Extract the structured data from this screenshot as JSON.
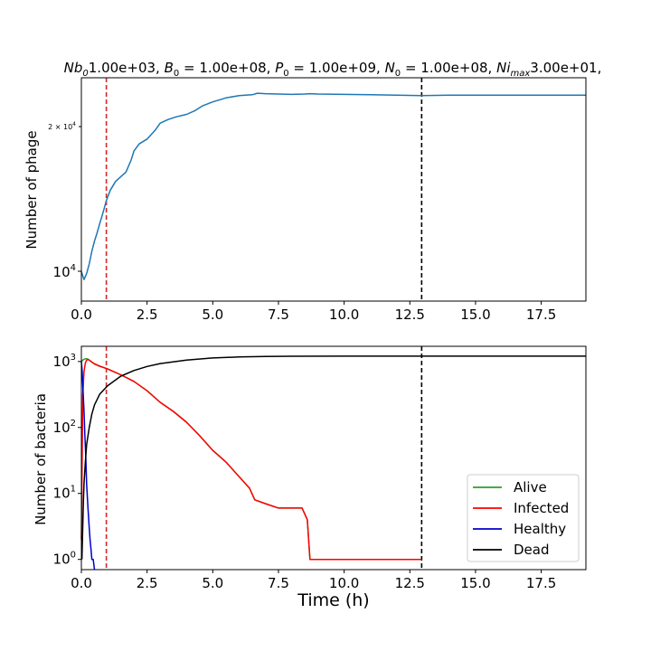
{
  "chart_data": [
    {
      "type": "line",
      "title": "Nb₀1.00e+03, B₀ = 1.00e+08, P₀ = 1.00e+09, N₀ = 1.00e+08, Ni_max3.00e+01,",
      "title_parts": {
        "p1": "Nb",
        "s1": "0",
        "v1": "1.00e+03, ",
        "p2": "B",
        "s2": "0",
        "v2": " = 1.00e+08, ",
        "p3": "P",
        "s3": "0",
        "v3": " = 1.00e+09, ",
        "p4": "N",
        "s4": "0",
        "v4": " = 1.00e+08, ",
        "p5": "Ni",
        "s5": "max",
        "v5": "3.00e+01,"
      },
      "xlabel": "",
      "ylabel": "Number of phage",
      "yscale": "log",
      "xlim": [
        0,
        19.2
      ],
      "ylim": [
        8400,
        27000
      ],
      "x_ticks": [
        "0.0",
        "2.5",
        "5.0",
        "7.5",
        "10.0",
        "12.5",
        "15.0",
        "17.5"
      ],
      "y_tick_labels": {
        "major": "10",
        "major_exp": "4",
        "minor": "2 × 10",
        "minor_exp": "4"
      },
      "vlines": [
        {
          "x": 0.95,
          "color": "#d62728",
          "style": "dashed"
        },
        {
          "x": 12.95,
          "color": "#000000",
          "style": "dashed"
        }
      ],
      "series": [
        {
          "color": "#1f77b4",
          "x": [
            0.0,
            0.1,
            0.2,
            0.3,
            0.4,
            0.5,
            0.6,
            0.7,
            0.8,
            0.95,
            1.1,
            1.3,
            1.5,
            1.7,
            1.9,
            2.0,
            2.2,
            2.5,
            2.8,
            3.0,
            3.3,
            3.6,
            4.0,
            4.3,
            4.6,
            5.0,
            5.5,
            6.0,
            6.5,
            6.7,
            7.0,
            7.5,
            8.0,
            8.5,
            8.7,
            9.0,
            10.0,
            11.0,
            12.0,
            12.95,
            14.0,
            15.0,
            16.0,
            17.0,
            18.0,
            19.2
          ],
          "values": [
            9800,
            9400,
            9700,
            10200,
            10900,
            11500,
            12000,
            12600,
            13200,
            14200,
            15000,
            15700,
            16100,
            16500,
            17600,
            18400,
            19100,
            19600,
            20500,
            21300,
            21700,
            22000,
            22300,
            22700,
            23300,
            23800,
            24300,
            24600,
            24700,
            24900,
            24850,
            24800,
            24750,
            24800,
            24850,
            24800,
            24750,
            24700,
            24650,
            24600,
            24650,
            24650,
            24650,
            24650,
            24650,
            24650
          ]
        }
      ]
    },
    {
      "type": "line",
      "xlabel": "Time (h)",
      "ylabel": "Number of bacteria",
      "yscale": "log",
      "xlim": [
        0,
        19.2
      ],
      "ylim": [
        0.7,
        1700
      ],
      "x_ticks": [
        "0.0",
        "2.5",
        "5.0",
        "7.5",
        "10.0",
        "12.5",
        "15.0",
        "17.5"
      ],
      "y_ticks": [
        {
          "base": "10",
          "exp": "0"
        },
        {
          "base": "10",
          "exp": "1"
        },
        {
          "base": "10",
          "exp": "2"
        },
        {
          "base": "10",
          "exp": "3"
        }
      ],
      "vlines": [
        {
          "x": 0.95,
          "color": "#d62728",
          "style": "dashed"
        },
        {
          "x": 12.95,
          "color": "#000000",
          "style": "dashed"
        }
      ],
      "legend": {
        "placement": "lower-right"
      },
      "series": [
        {
          "name": "Alive",
          "color": "#2ca02c",
          "x": [
            0.0,
            0.05,
            0.1,
            0.15,
            0.2,
            0.25,
            0.3,
            0.4,
            0.5,
            0.7,
            1.0,
            1.5,
            2.0,
            2.5,
            3.0,
            3.5,
            4.0,
            4.5,
            5.0,
            5.5,
            6.0,
            6.4,
            6.6,
            7.0,
            7.5,
            8.0,
            8.4,
            8.6,
            8.7,
            10.0,
            11.0,
            12.0,
            12.95
          ],
          "values": [
            1000,
            1050,
            1080,
            1100,
            1100,
            1090,
            1050,
            980,
            920,
            850,
            770,
            630,
            500,
            360,
            240,
            175,
            120,
            75,
            45,
            30,
            18,
            12,
            8,
            7,
            6,
            6,
            6,
            4,
            1,
            1,
            1,
            1,
            1
          ]
        },
        {
          "name": "Infected",
          "color": "#ff0000",
          "x": [
            0.0,
            0.05,
            0.1,
            0.15,
            0.2,
            0.25,
            0.3,
            0.4,
            0.5,
            0.7,
            1.0,
            1.5,
            2.0,
            2.5,
            3.0,
            3.5,
            4.0,
            4.5,
            5.0,
            5.5,
            6.0,
            6.4,
            6.6,
            7.0,
            7.5,
            8.0,
            8.4,
            8.6,
            8.7,
            10.0,
            11.0,
            12.0,
            12.95
          ],
          "values": [
            2,
            300,
            700,
            950,
            1050,
            1070,
            1050,
            980,
            920,
            850,
            770,
            630,
            500,
            360,
            240,
            175,
            120,
            75,
            45,
            30,
            18,
            12,
            8,
            7,
            6,
            6,
            6,
            4,
            1,
            1,
            1,
            1,
            1
          ]
        },
        {
          "name": "Healthy",
          "color": "#0000cc",
          "x": [
            0.0,
            0.03,
            0.06,
            0.1,
            0.13,
            0.17,
            0.2,
            0.25,
            0.3,
            0.33,
            0.36,
            0.4,
            0.45,
            0.5
          ],
          "values": [
            1000,
            700,
            400,
            180,
            80,
            35,
            14,
            6,
            3,
            2,
            1.5,
            1,
            1,
            0.7
          ]
        },
        {
          "name": "Dead",
          "color": "#000000",
          "x": [
            0.02,
            0.05,
            0.08,
            0.1,
            0.15,
            0.2,
            0.3,
            0.4,
            0.5,
            0.7,
            1.0,
            1.5,
            2.0,
            2.5,
            3.0,
            4.0,
            5.0,
            6.0,
            7.0,
            8.0,
            10.0,
            12.0,
            14.0,
            16.0,
            19.2
          ],
          "values": [
            1,
            3,
            8,
            14,
            30,
            55,
            100,
            160,
            220,
            320,
            430,
            600,
            730,
            840,
            930,
            1050,
            1130,
            1170,
            1190,
            1200,
            1205,
            1205,
            1205,
            1205,
            1205
          ]
        }
      ]
    }
  ]
}
